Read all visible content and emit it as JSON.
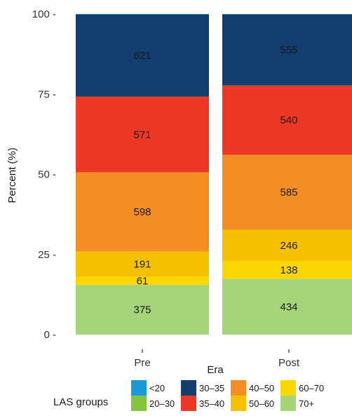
{
  "chart_data": {
    "type": "bar",
    "stacked": "percent",
    "categories": [
      "Pre",
      "Post"
    ],
    "xlabel": "Era",
    "ylabel": "Percent (%)",
    "ylim": [
      0,
      100
    ],
    "yticks": [
      0,
      25,
      50,
      75,
      100
    ],
    "grid": false,
    "legend_title": "LAS groups",
    "legend_position": "bottom",
    "series": [
      {
        "name": "70+",
        "color": "#a5d47a",
        "values": [
          375,
          434
        ]
      },
      {
        "name": "60–70",
        "color": "#fcd800",
        "values": [
          61,
          138
        ]
      },
      {
        "name": "50–60",
        "color": "#f6c200",
        "values": [
          191,
          246
        ]
      },
      {
        "name": "40–50",
        "color": "#f28e24",
        "values": [
          598,
          585
        ]
      },
      {
        "name": "35–40",
        "color": "#ee3826",
        "values": [
          571,
          540
        ]
      },
      {
        "name": "30–35",
        "color": "#123d6e",
        "values": [
          621,
          555
        ]
      },
      {
        "name": "20–30",
        "color": "#86c440",
        "values": [
          0,
          0
        ]
      },
      {
        "name": "<20",
        "color": "#1a9bd7",
        "values": [
          3,
          2
        ]
      }
    ],
    "legend_order": [
      "<20",
      "20–30",
      "30–35",
      "35–40",
      "40–50",
      "50–60",
      "60–70",
      "70+"
    ]
  }
}
